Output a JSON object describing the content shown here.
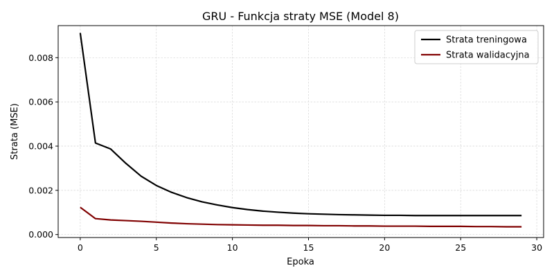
{
  "chart_data": {
    "type": "line",
    "title": "GRU - Funkcja straty MSE (Model 8)",
    "xlabel": "Epoka",
    "ylabel": "Strata (MSE)",
    "xlim": [
      -1.45,
      30.45
    ],
    "ylim": [
      -0.000135,
      0.00945
    ],
    "xticks": [
      0,
      5,
      10,
      15,
      20,
      25,
      30
    ],
    "yticks": [
      0.0,
      0.002,
      0.004,
      0.006,
      0.008
    ],
    "xtick_labels": [
      "0",
      "5",
      "10",
      "15",
      "20",
      "25",
      "30"
    ],
    "ytick_labels": [
      "0.000",
      "0.002",
      "0.004",
      "0.006",
      "0.008"
    ],
    "grid": true,
    "legend_position": "top-right",
    "x": [
      0,
      1,
      2,
      3,
      4,
      5,
      6,
      7,
      8,
      9,
      10,
      11,
      12,
      13,
      14,
      15,
      16,
      17,
      18,
      19,
      20,
      21,
      22,
      23,
      24,
      25,
      26,
      27,
      28,
      29
    ],
    "series": [
      {
        "name": "Strata treningowa",
        "color": "#000000",
        "values": [
          0.00912,
          0.00414,
          0.00387,
          0.00322,
          0.00264,
          0.00222,
          0.00191,
          0.00167,
          0.00148,
          0.00134,
          0.00122,
          0.00113,
          0.00106,
          0.00101,
          0.00097,
          0.00094,
          0.00092,
          0.0009,
          0.00089,
          0.00088,
          0.00087,
          0.00087,
          0.00086,
          0.00086,
          0.00086,
          0.00086,
          0.00086,
          0.00086,
          0.00086,
          0.00086
        ]
      },
      {
        "name": "Strata walidacyjna",
        "color": "#800000",
        "values": [
          0.00123,
          0.00072,
          0.00066,
          0.00063,
          0.0006,
          0.00056,
          0.00052,
          0.00049,
          0.00047,
          0.00045,
          0.00044,
          0.00043,
          0.00042,
          0.00042,
          0.00041,
          0.00041,
          0.0004,
          0.0004,
          0.00039,
          0.00039,
          0.00038,
          0.00038,
          0.00038,
          0.00037,
          0.00037,
          0.00037,
          0.00036,
          0.00036,
          0.00035,
          0.00035
        ]
      }
    ]
  }
}
